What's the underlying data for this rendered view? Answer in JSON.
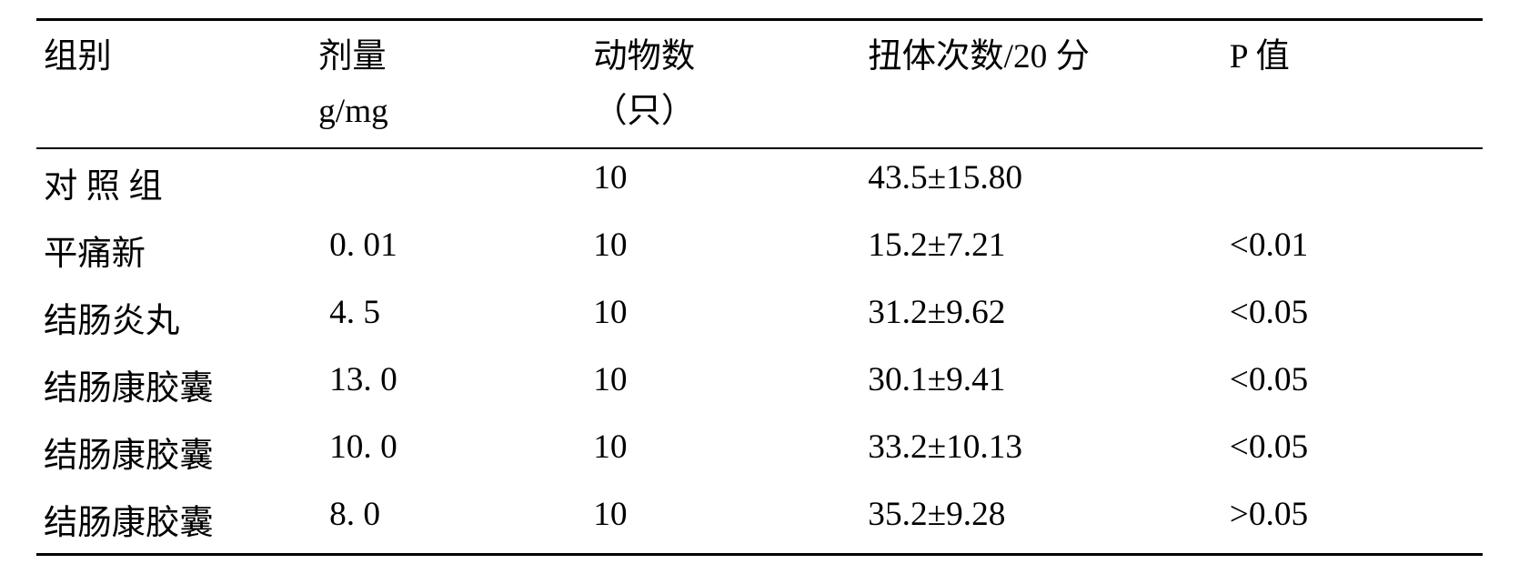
{
  "table": {
    "font_size_pt": 28,
    "text_color": "#000000",
    "background_color": "#ffffff",
    "border_color": "#000000",
    "columns": [
      {
        "key": "group",
        "label": "组别",
        "sub": ""
      },
      {
        "key": "dose",
        "label": "剂量",
        "sub": "g/mg"
      },
      {
        "key": "animals",
        "label": "动物数",
        "sub": "（只）"
      },
      {
        "key": "writhe",
        "label": "扭体次数/20 分",
        "sub": ""
      },
      {
        "key": "p",
        "label": "P 值",
        "sub": ""
      }
    ],
    "rows": [
      {
        "group": "对 照 组",
        "dose": "",
        "animals": "10",
        "writhe": "43.5±15.80",
        "p": ""
      },
      {
        "group": "平痛新",
        "dose": "0. 01",
        "animals": "10",
        "writhe": "15.2±7.21",
        "p": "<0.01"
      },
      {
        "group": "结肠炎丸",
        "dose": " 4. 5",
        "animals": "10",
        "writhe": "31.2±9.62",
        "p": "<0.05"
      },
      {
        "group": "结肠康胶囊",
        "dose": "13. 0",
        "animals": "10",
        "writhe": "30.1±9.41",
        "p": "<0.05"
      },
      {
        "group": "结肠康胶囊",
        "dose": "10. 0",
        "animals": "10",
        "writhe": "33.2±10.13",
        "p": "<0.05"
      },
      {
        "group": "结肠康胶囊",
        "dose": " 8. 0",
        "animals": "10",
        "writhe": "35.2±9.28",
        "p": ">0.05"
      }
    ]
  }
}
